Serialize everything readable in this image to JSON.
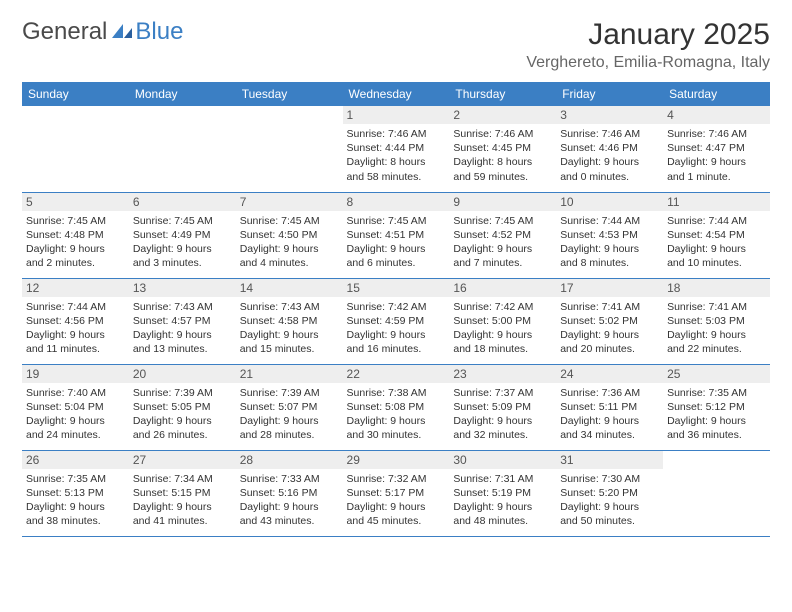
{
  "logo": {
    "text1": "General",
    "text2": "Blue"
  },
  "header": {
    "month_title": "January 2025",
    "location": "Verghereto, Emilia-Romagna, Italy"
  },
  "colors": {
    "accent": "#3b7fc4",
    "header_bg": "#3b7fc4",
    "header_text": "#ffffff",
    "daynum_bg": "#eeeeee",
    "border": "#3b7fc4"
  },
  "day_headers": [
    "Sunday",
    "Monday",
    "Tuesday",
    "Wednesday",
    "Thursday",
    "Friday",
    "Saturday"
  ],
  "weeks": [
    [
      null,
      null,
      null,
      {
        "n": "1",
        "sr": "Sunrise: 7:46 AM",
        "ss": "Sunset: 4:44 PM",
        "dl": "Daylight: 8 hours and 58 minutes."
      },
      {
        "n": "2",
        "sr": "Sunrise: 7:46 AM",
        "ss": "Sunset: 4:45 PM",
        "dl": "Daylight: 8 hours and 59 minutes."
      },
      {
        "n": "3",
        "sr": "Sunrise: 7:46 AM",
        "ss": "Sunset: 4:46 PM",
        "dl": "Daylight: 9 hours and 0 minutes."
      },
      {
        "n": "4",
        "sr": "Sunrise: 7:46 AM",
        "ss": "Sunset: 4:47 PM",
        "dl": "Daylight: 9 hours and 1 minute."
      }
    ],
    [
      {
        "n": "5",
        "sr": "Sunrise: 7:45 AM",
        "ss": "Sunset: 4:48 PM",
        "dl": "Daylight: 9 hours and 2 minutes."
      },
      {
        "n": "6",
        "sr": "Sunrise: 7:45 AM",
        "ss": "Sunset: 4:49 PM",
        "dl": "Daylight: 9 hours and 3 minutes."
      },
      {
        "n": "7",
        "sr": "Sunrise: 7:45 AM",
        "ss": "Sunset: 4:50 PM",
        "dl": "Daylight: 9 hours and 4 minutes."
      },
      {
        "n": "8",
        "sr": "Sunrise: 7:45 AM",
        "ss": "Sunset: 4:51 PM",
        "dl": "Daylight: 9 hours and 6 minutes."
      },
      {
        "n": "9",
        "sr": "Sunrise: 7:45 AM",
        "ss": "Sunset: 4:52 PM",
        "dl": "Daylight: 9 hours and 7 minutes."
      },
      {
        "n": "10",
        "sr": "Sunrise: 7:44 AM",
        "ss": "Sunset: 4:53 PM",
        "dl": "Daylight: 9 hours and 8 minutes."
      },
      {
        "n": "11",
        "sr": "Sunrise: 7:44 AM",
        "ss": "Sunset: 4:54 PM",
        "dl": "Daylight: 9 hours and 10 minutes."
      }
    ],
    [
      {
        "n": "12",
        "sr": "Sunrise: 7:44 AM",
        "ss": "Sunset: 4:56 PM",
        "dl": "Daylight: 9 hours and 11 minutes."
      },
      {
        "n": "13",
        "sr": "Sunrise: 7:43 AM",
        "ss": "Sunset: 4:57 PM",
        "dl": "Daylight: 9 hours and 13 minutes."
      },
      {
        "n": "14",
        "sr": "Sunrise: 7:43 AM",
        "ss": "Sunset: 4:58 PM",
        "dl": "Daylight: 9 hours and 15 minutes."
      },
      {
        "n": "15",
        "sr": "Sunrise: 7:42 AM",
        "ss": "Sunset: 4:59 PM",
        "dl": "Daylight: 9 hours and 16 minutes."
      },
      {
        "n": "16",
        "sr": "Sunrise: 7:42 AM",
        "ss": "Sunset: 5:00 PM",
        "dl": "Daylight: 9 hours and 18 minutes."
      },
      {
        "n": "17",
        "sr": "Sunrise: 7:41 AM",
        "ss": "Sunset: 5:02 PM",
        "dl": "Daylight: 9 hours and 20 minutes."
      },
      {
        "n": "18",
        "sr": "Sunrise: 7:41 AM",
        "ss": "Sunset: 5:03 PM",
        "dl": "Daylight: 9 hours and 22 minutes."
      }
    ],
    [
      {
        "n": "19",
        "sr": "Sunrise: 7:40 AM",
        "ss": "Sunset: 5:04 PM",
        "dl": "Daylight: 9 hours and 24 minutes."
      },
      {
        "n": "20",
        "sr": "Sunrise: 7:39 AM",
        "ss": "Sunset: 5:05 PM",
        "dl": "Daylight: 9 hours and 26 minutes."
      },
      {
        "n": "21",
        "sr": "Sunrise: 7:39 AM",
        "ss": "Sunset: 5:07 PM",
        "dl": "Daylight: 9 hours and 28 minutes."
      },
      {
        "n": "22",
        "sr": "Sunrise: 7:38 AM",
        "ss": "Sunset: 5:08 PM",
        "dl": "Daylight: 9 hours and 30 minutes."
      },
      {
        "n": "23",
        "sr": "Sunrise: 7:37 AM",
        "ss": "Sunset: 5:09 PM",
        "dl": "Daylight: 9 hours and 32 minutes."
      },
      {
        "n": "24",
        "sr": "Sunrise: 7:36 AM",
        "ss": "Sunset: 5:11 PM",
        "dl": "Daylight: 9 hours and 34 minutes."
      },
      {
        "n": "25",
        "sr": "Sunrise: 7:35 AM",
        "ss": "Sunset: 5:12 PM",
        "dl": "Daylight: 9 hours and 36 minutes."
      }
    ],
    [
      {
        "n": "26",
        "sr": "Sunrise: 7:35 AM",
        "ss": "Sunset: 5:13 PM",
        "dl": "Daylight: 9 hours and 38 minutes."
      },
      {
        "n": "27",
        "sr": "Sunrise: 7:34 AM",
        "ss": "Sunset: 5:15 PM",
        "dl": "Daylight: 9 hours and 41 minutes."
      },
      {
        "n": "28",
        "sr": "Sunrise: 7:33 AM",
        "ss": "Sunset: 5:16 PM",
        "dl": "Daylight: 9 hours and 43 minutes."
      },
      {
        "n": "29",
        "sr": "Sunrise: 7:32 AM",
        "ss": "Sunset: 5:17 PM",
        "dl": "Daylight: 9 hours and 45 minutes."
      },
      {
        "n": "30",
        "sr": "Sunrise: 7:31 AM",
        "ss": "Sunset: 5:19 PM",
        "dl": "Daylight: 9 hours and 48 minutes."
      },
      {
        "n": "31",
        "sr": "Sunrise: 7:30 AM",
        "ss": "Sunset: 5:20 PM",
        "dl": "Daylight: 9 hours and 50 minutes."
      },
      null
    ]
  ]
}
